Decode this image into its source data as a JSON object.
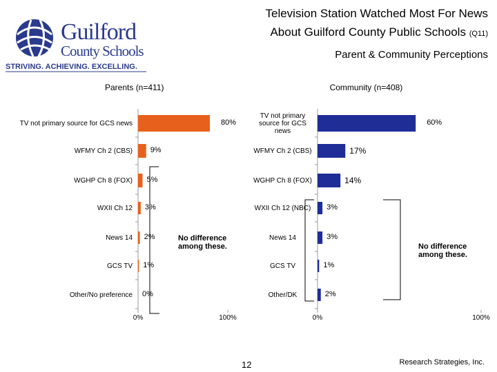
{
  "header": {
    "logo_line1": "Guilford",
    "logo_line2": "County Schools",
    "tagline": "STRIVING. ACHIEVING. EXCELLING.",
    "title_line1": "Television Station Watched Most For News",
    "title_line2": "About Guilford County Public Schools",
    "title_note": "(Q11)",
    "subtitle": "Parent & Community Perceptions"
  },
  "chart_data": [
    {
      "type": "bar",
      "orientation": "horizontal",
      "title": "Parents (n=411)",
      "color": "#e8611c",
      "categories": [
        "TV not primary source for GCS news",
        "WFMY Ch 2 (CBS)",
        "WGHP Ch 8 (FOX)",
        "WXII Ch 12",
        "News 14",
        "GCS TV",
        "Other/No preference"
      ],
      "values": [
        80,
        9,
        5,
        3,
        2,
        1,
        0
      ],
      "value_labels": [
        "80%",
        "9%",
        "5%",
        "3%",
        "2%",
        "1%",
        "0%"
      ],
      "xlim": [
        0,
        100
      ],
      "xticks": [
        {
          "value": 0,
          "label": "0%"
        },
        {
          "value": 100,
          "label": "100%"
        }
      ],
      "annotation": "No difference among these."
    },
    {
      "type": "bar",
      "orientation": "horizontal",
      "title": "Community (n=408)",
      "color": "#1f2d96",
      "categories": [
        "TV not primary source for GCS news",
        "WFMY Ch 2 (CBS)",
        "WGHP Ch 8 (FOX)",
        "WXII Ch 12 (NBC)",
        "News 14",
        "GCS TV",
        "Other/DK"
      ],
      "values": [
        60,
        17,
        14,
        3,
        3,
        1,
        2
      ],
      "value_labels": [
        "60%",
        "17%",
        "14%",
        "3%",
        "3%",
        "1%",
        "2%"
      ],
      "xlim": [
        0,
        100
      ],
      "xticks": [
        {
          "value": 0,
          "label": "0%"
        },
        {
          "value": 100,
          "label": "100%"
        }
      ],
      "annotation": "No difference among these."
    }
  ],
  "footer": {
    "page": "12",
    "credit": "Research Strategies, Inc."
  }
}
